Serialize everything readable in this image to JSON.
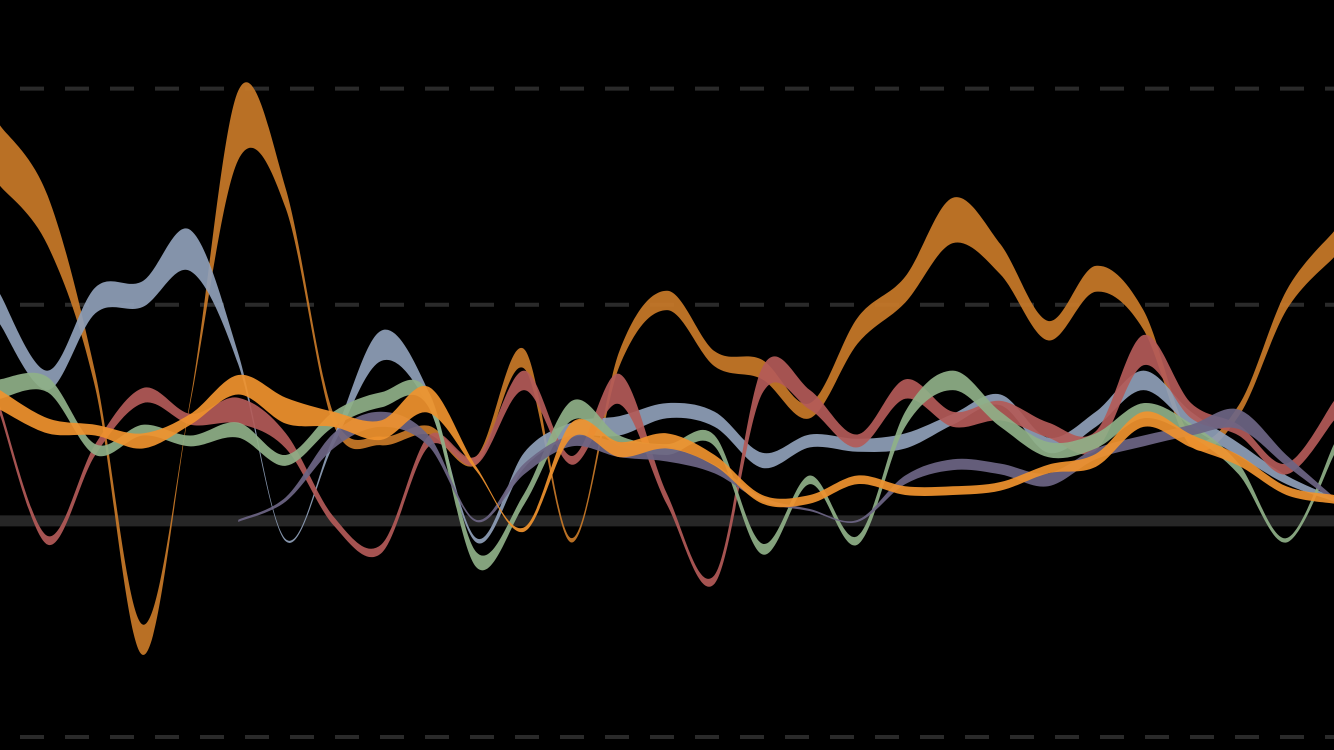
{
  "chart_data": {
    "type": "ribbon",
    "x": [
      0,
      1,
      2,
      3,
      4,
      5,
      6,
      7,
      8,
      9,
      10,
      11,
      12,
      13,
      14,
      15,
      16,
      17,
      18,
      19,
      20,
      21,
      22,
      23,
      24,
      25,
      26,
      27,
      28
    ],
    "xlim": [
      0,
      28
    ],
    "ylim": [
      -10.6,
      24.1
    ],
    "yticks": [
      -10,
      0,
      10,
      20
    ],
    "grid": true,
    "series": [
      {
        "color": "#c97a28",
        "values": [
          16.9,
          13.9,
          6.5,
          -5.5,
          5.6,
          18.3,
          14.9,
          4.7,
          3.7,
          4.2,
          2.8,
          7.5,
          -0.9,
          7.5,
          10.2,
          7.5,
          7.0,
          5.1,
          8.8,
          10.7,
          13.9,
          12.1,
          8.8,
          11.2,
          9.3,
          3.7,
          5.1,
          10.2,
          12.8
        ],
        "widths": [
          2.8,
          2.3,
          0.7,
          1.4,
          0.2,
          3.2,
          0.9,
          0.5,
          0.4,
          0.4,
          0.4,
          0.9,
          0.2,
          0.7,
          0.9,
          0.7,
          0.9,
          0.7,
          1.2,
          1.2,
          2.1,
          1.4,
          0.9,
          1.2,
          0.9,
          0.5,
          0.5,
          0.9,
          1.2
        ]
      },
      {
        "color": "#8fa0b8",
        "values": [
          9.8,
          6.5,
          10.2,
          10.5,
          12.5,
          7.5,
          -0.9,
          3.7,
          8.1,
          5.6,
          -0.9,
          2.8,
          4.2,
          4.4,
          5.1,
          4.7,
          2.8,
          3.7,
          3.5,
          3.7,
          4.7,
          5.6,
          3.5,
          4.7,
          6.5,
          4.7,
          3.3,
          1.9,
          1.0
        ],
        "widths": [
          1.4,
          0.9,
          1.2,
          1.2,
          1.9,
          0.5,
          0.1,
          0.4,
          1.4,
          0.7,
          0.2,
          0.7,
          0.7,
          0.9,
          0.7,
          0.7,
          0.7,
          0.6,
          0.6,
          0.7,
          0.5,
          0.5,
          0.7,
          0.7,
          0.9,
          0.7,
          0.6,
          0.4,
          0.2
        ]
      },
      {
        "color": "#b35a58",
        "values": [
          5.1,
          -0.9,
          3.3,
          5.8,
          4.7,
          5.1,
          3.7,
          0.0,
          -1.3,
          3.7,
          2.8,
          6.5,
          2.8,
          6.1,
          1.0,
          -2.7,
          6.5,
          5.6,
          3.7,
          6.1,
          4.7,
          5.1,
          4.2,
          3.7,
          7.9,
          5.1,
          4.2,
          2.4,
          5.1
        ],
        "widths": [
          0.4,
          0.4,
          0.5,
          0.7,
          0.5,
          1.2,
          0.7,
          0.4,
          0.4,
          0.5,
          0.4,
          0.9,
          0.4,
          1.4,
          0.5,
          0.4,
          1.2,
          0.9,
          0.6,
          0.9,
          0.7,
          0.9,
          0.7,
          0.9,
          1.4,
          0.7,
          0.5,
          0.5,
          0.9
        ]
      },
      {
        "color": "#8fb088",
        "values": [
          6.1,
          6.3,
          3.3,
          4.2,
          3.7,
          4.2,
          2.8,
          4.7,
          5.6,
          5.6,
          -1.8,
          1.0,
          5.1,
          3.7,
          3.3,
          3.7,
          -1.3,
          1.9,
          -0.9,
          4.7,
          6.5,
          4.7,
          3.3,
          3.7,
          5.1,
          4.2,
          2.4,
          -0.9,
          3.3
        ],
        "widths": [
          0.9,
          0.7,
          0.5,
          0.5,
          0.5,
          0.7,
          0.5,
          0.7,
          0.7,
          0.7,
          0.7,
          0.5,
          0.9,
          0.5,
          0.5,
          0.5,
          0.5,
          0.4,
          0.4,
          0.7,
          0.9,
          0.7,
          0.7,
          0.7,
          0.7,
          0.6,
          0.5,
          0.2,
          0.5
        ]
      },
      {
        "color": "#6d6584",
        "values": [
          null,
          null,
          null,
          null,
          null,
          0.0,
          1.0,
          3.7,
          4.7,
          3.7,
          0.0,
          2.4,
          3.7,
          3.3,
          3.1,
          2.4,
          1.0,
          0.5,
          0.0,
          1.9,
          2.6,
          2.4,
          1.9,
          3.1,
          3.7,
          4.2,
          4.7,
          2.8,
          1.0
        ],
        "widths": [
          null,
          null,
          null,
          null,
          null,
          0.1,
          0.2,
          0.7,
          0.7,
          0.5,
          0.1,
          0.5,
          0.5,
          0.7,
          0.7,
          0.4,
          0.2,
          0.1,
          0.1,
          0.4,
          0.5,
          0.5,
          0.6,
          0.5,
          0.5,
          0.5,
          0.9,
          0.5,
          0.2
        ]
      },
      {
        "color": "#f0922e",
        "values": [
          5.6,
          4.4,
          4.2,
          3.7,
          4.7,
          6.3,
          5.1,
          4.7,
          4.2,
          5.6,
          2.4,
          -0.4,
          4.2,
          3.3,
          3.7,
          2.8,
          1.0,
          1.0,
          1.9,
          1.4,
          1.4,
          1.6,
          2.4,
          2.8,
          4.7,
          3.7,
          2.8,
          1.4,
          1.0
        ],
        "widths": [
          0.9,
          0.7,
          0.5,
          0.7,
          0.5,
          0.9,
          1.2,
          0.7,
          0.9,
          1.2,
          0.2,
          0.2,
          0.7,
          0.7,
          0.7,
          0.5,
          0.4,
          0.4,
          0.4,
          0.4,
          0.4,
          0.4,
          0.4,
          0.6,
          0.7,
          0.6,
          0.5,
          0.4,
          0.4
        ]
      }
    ]
  }
}
